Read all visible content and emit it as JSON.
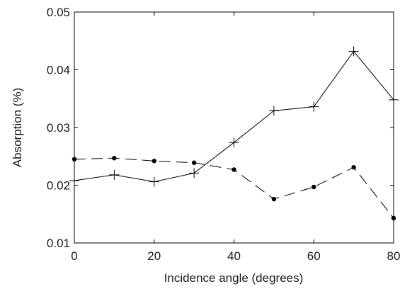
{
  "chart_data": {
    "type": "line",
    "title": "",
    "xlabel": "Incidence angle (degrees)",
    "ylabel": "Absorption (%)",
    "xlim": [
      0,
      80
    ],
    "ylim": [
      0.01,
      0.05
    ],
    "x_ticks": [
      "0",
      "20",
      "40",
      "60",
      "80"
    ],
    "y_ticks": [
      "0.01",
      "0.02",
      "0.03",
      "0.04",
      "0.05"
    ],
    "grid": false,
    "legend": "none",
    "x": [
      0,
      10,
      20,
      30,
      40,
      50,
      60,
      70,
      80
    ],
    "series": [
      {
        "marker": "plus",
        "line_style": "solid",
        "color": "#000000",
        "values": [
          0.0208,
          0.0218,
          0.0206,
          0.0221,
          0.0274,
          0.0329,
          0.0336,
          0.0432,
          0.0348
        ]
      },
      {
        "marker": "dot",
        "line_style": "dashed",
        "color": "#000000",
        "values": [
          0.0245,
          0.0247,
          0.0242,
          0.0239,
          0.0227,
          0.0176,
          0.0197,
          0.0231,
          0.0143
        ]
      }
    ]
  }
}
